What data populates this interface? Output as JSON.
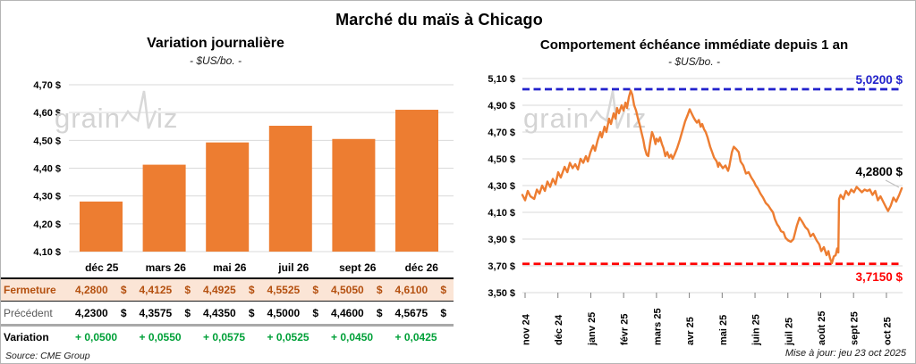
{
  "title": "Marché du maïs à Chicago",
  "source_note": "Source: CME Group",
  "update_note": "Mise à jour: jeu 23 oct 2025",
  "watermark": {
    "part1": "grain",
    "part2": "iz"
  },
  "colors": {
    "bar": "#ed7d31",
    "line": "#ed7d31",
    "gridline": "#d9d9d9",
    "resistance_blue": "#2222cc",
    "support_red": "#fe0000",
    "fermeture_text": "#b4500f",
    "fermeture_bg": "#fbe5d6",
    "variation_green": "#00a038",
    "watermark_gray": "#d4d4d4",
    "tick_gray": "#7f7f7f",
    "leader_gray": "#bfbfbf"
  },
  "chart_data": [
    {
      "type": "bar",
      "title": "Variation journalière",
      "subtitle": "- $US/bo. -",
      "categories": [
        "déc 25",
        "mars 26",
        "mai 26",
        "juil 26",
        "sept 26",
        "déc 26"
      ],
      "values": [
        4.28,
        4.4125,
        4.4925,
        4.5525,
        4.505,
        4.61
      ],
      "ylabel": "$US/bo.",
      "ylim": [
        4.1,
        4.7
      ],
      "ytick_labels": [
        "4,70 $",
        "4,60 $",
        "4,50 $",
        "4,40 $",
        "4,30 $",
        "4,20 $",
        "4,10 $"
      ],
      "grid": true,
      "legend": "none"
    },
    {
      "type": "line",
      "title": "Comportement échéance immédiate depuis 1 an",
      "subtitle": "- $US/bo. -",
      "ylabel": "$US/bo.",
      "ylim": [
        3.5,
        5.1
      ],
      "ytick_labels": [
        "5,10 $",
        "4,90 $",
        "4,70 $",
        "4,50 $",
        "4,30 $",
        "4,10 $",
        "3,90 $",
        "3,70 $",
        "3,50 $"
      ],
      "x_labels": [
        "nov 24",
        "déc 24",
        "janv 25",
        "févr 25",
        "mars 25",
        "avr 25",
        "mai 25",
        "juin 25",
        "juil 25",
        "août 25",
        "sept 25",
        "oct 25"
      ],
      "grid": true,
      "resistance": {
        "value": 5.02,
        "label": "5,0200 $"
      },
      "support": {
        "value": 3.715,
        "label": "3,7150 $"
      },
      "last_point": {
        "value": 4.28,
        "label": "4,2800 $"
      },
      "points": [
        [
          0.0,
          4.23
        ],
        [
          0.007,
          4.19
        ],
        [
          0.014,
          4.26
        ],
        [
          0.021,
          4.22
        ],
        [
          0.031,
          4.2
        ],
        [
          0.038,
          4.27
        ],
        [
          0.045,
          4.24
        ],
        [
          0.052,
          4.3
        ],
        [
          0.059,
          4.26
        ],
        [
          0.066,
          4.33
        ],
        [
          0.073,
          4.29
        ],
        [
          0.08,
          4.35
        ],
        [
          0.087,
          4.31
        ],
        [
          0.094,
          4.4
        ],
        [
          0.101,
          4.36
        ],
        [
          0.111,
          4.44
        ],
        [
          0.118,
          4.4
        ],
        [
          0.125,
          4.47
        ],
        [
          0.132,
          4.43
        ],
        [
          0.139,
          4.46
        ],
        [
          0.146,
          4.42
        ],
        [
          0.153,
          4.5
        ],
        [
          0.16,
          4.47
        ],
        [
          0.167,
          4.52
        ],
        [
          0.172,
          4.48
        ],
        [
          0.179,
          4.55
        ],
        [
          0.186,
          4.6
        ],
        [
          0.191,
          4.56
        ],
        [
          0.198,
          4.64
        ],
        [
          0.205,
          4.7
        ],
        [
          0.209,
          4.66
        ],
        [
          0.216,
          4.74
        ],
        [
          0.221,
          4.7
        ],
        [
          0.228,
          4.8
        ],
        [
          0.233,
          4.76
        ],
        [
          0.24,
          4.84
        ],
        [
          0.245,
          4.8
        ],
        [
          0.249,
          4.88
        ],
        [
          0.254,
          4.84
        ],
        [
          0.261,
          4.9
        ],
        [
          0.266,
          4.86
        ],
        [
          0.271,
          4.92
        ],
        [
          0.275,
          4.88
        ],
        [
          0.28,
          4.96
        ],
        [
          0.285,
          5.01
        ],
        [
          0.289,
          4.98
        ],
        [
          0.294,
          4.9
        ],
        [
          0.299,
          4.86
        ],
        [
          0.304,
          4.8
        ],
        [
          0.309,
          4.75
        ],
        [
          0.313,
          4.7
        ],
        [
          0.318,
          4.64
        ],
        [
          0.322,
          4.58
        ],
        [
          0.327,
          4.53
        ],
        [
          0.331,
          4.52
        ],
        [
          0.336,
          4.62
        ],
        [
          0.341,
          4.7
        ],
        [
          0.345,
          4.67
        ],
        [
          0.35,
          4.61
        ],
        [
          0.353,
          4.65
        ],
        [
          0.358,
          4.63
        ],
        [
          0.362,
          4.66
        ],
        [
          0.367,
          4.61
        ],
        [
          0.371,
          4.58
        ],
        [
          0.376,
          4.52
        ],
        [
          0.381,
          4.55
        ],
        [
          0.386,
          4.51
        ],
        [
          0.391,
          4.53
        ],
        [
          0.395,
          4.5
        ],
        [
          0.4,
          4.53
        ],
        [
          0.407,
          4.58
        ],
        [
          0.414,
          4.64
        ],
        [
          0.421,
          4.71
        ],
        [
          0.428,
          4.78
        ],
        [
          0.435,
          4.83
        ],
        [
          0.44,
          4.87
        ],
        [
          0.445,
          4.84
        ],
        [
          0.45,
          4.81
        ],
        [
          0.454,
          4.79
        ],
        [
          0.459,
          4.77
        ],
        [
          0.464,
          4.79
        ],
        [
          0.469,
          4.74
        ],
        [
          0.473,
          4.76
        ],
        [
          0.478,
          4.72
        ],
        [
          0.482,
          4.7
        ],
        [
          0.487,
          4.66
        ],
        [
          0.494,
          4.59
        ],
        [
          0.499,
          4.55
        ],
        [
          0.504,
          4.51
        ],
        [
          0.511,
          4.48
        ],
        [
          0.515,
          4.44
        ],
        [
          0.518,
          4.47
        ],
        [
          0.527,
          4.43
        ],
        [
          0.534,
          4.45
        ],
        [
          0.541,
          4.41
        ],
        [
          0.544,
          4.44
        ],
        [
          0.551,
          4.55
        ],
        [
          0.556,
          4.59
        ],
        [
          0.563,
          4.57
        ],
        [
          0.569,
          4.55
        ],
        [
          0.574,
          4.48
        ],
        [
          0.581,
          4.45
        ],
        [
          0.588,
          4.39
        ],
        [
          0.595,
          4.4
        ],
        [
          0.602,
          4.36
        ],
        [
          0.609,
          4.33
        ],
        [
          0.614,
          4.3
        ],
        [
          0.619,
          4.28
        ],
        [
          0.626,
          4.24
        ],
        [
          0.633,
          4.21
        ],
        [
          0.64,
          4.17
        ],
        [
          0.647,
          4.15
        ],
        [
          0.654,
          4.12
        ],
        [
          0.659,
          4.1
        ],
        [
          0.664,
          4.05
        ],
        [
          0.67,
          4.01
        ],
        [
          0.675,
          3.99
        ],
        [
          0.68,
          3.96
        ],
        [
          0.687,
          3.95
        ],
        [
          0.692,
          3.91
        ],
        [
          0.699,
          3.89
        ],
        [
          0.706,
          3.88
        ],
        [
          0.713,
          3.9
        ],
        [
          0.722,
          4.0
        ],
        [
          0.729,
          4.06
        ],
        [
          0.736,
          4.03
        ],
        [
          0.744,
          3.99
        ],
        [
          0.751,
          3.97
        ],
        [
          0.758,
          3.92
        ],
        [
          0.765,
          3.94
        ],
        [
          0.774,
          3.89
        ],
        [
          0.781,
          3.86
        ],
        [
          0.786,
          3.81
        ],
        [
          0.793,
          3.84
        ],
        [
          0.8,
          3.78
        ],
        [
          0.805,
          3.81
        ],
        [
          0.809,
          3.76
        ],
        [
          0.814,
          3.72
        ],
        [
          0.819,
          3.77
        ],
        [
          0.824,
          3.78
        ],
        [
          0.828,
          3.83
        ],
        [
          0.831,
          3.8
        ],
        [
          0.833,
          4.2
        ],
        [
          0.837,
          4.23
        ],
        [
          0.844,
          4.2
        ],
        [
          0.851,
          4.26
        ],
        [
          0.858,
          4.23
        ],
        [
          0.865,
          4.27
        ],
        [
          0.872,
          4.25
        ],
        [
          0.879,
          4.29
        ],
        [
          0.886,
          4.27
        ],
        [
          0.893,
          4.25
        ],
        [
          0.9,
          4.27
        ],
        [
          0.907,
          4.26
        ],
        [
          0.914,
          4.27
        ],
        [
          0.921,
          4.23
        ],
        [
          0.928,
          4.26
        ],
        [
          0.935,
          4.19
        ],
        [
          0.942,
          4.22
        ],
        [
          0.949,
          4.18
        ],
        [
          0.956,
          4.14
        ],
        [
          0.962,
          4.11
        ],
        [
          0.969,
          4.15
        ],
        [
          0.976,
          4.21
        ],
        [
          0.983,
          4.18
        ],
        [
          0.991,
          4.23
        ],
        [
          0.998,
          4.28
        ]
      ]
    }
  ],
  "table": {
    "col_headers": [
      "déc 25",
      "mars 26",
      "mai 26",
      "juil 26",
      "sept 26",
      "déc 26"
    ],
    "currency": "$",
    "rows": [
      {
        "label": "Fermeture",
        "values": [
          "4,2800",
          "4,4125",
          "4,4925",
          "4,5525",
          "4,5050",
          "4,6100"
        ],
        "currency": true
      },
      {
        "label": "Précédent",
        "values": [
          "4,2300",
          "4,3575",
          "4,4350",
          "4,5000",
          "4,4600",
          "4,5675"
        ],
        "currency": true
      },
      {
        "label": "Variation",
        "values": [
          "+ 0,0500",
          "+ 0,0550",
          "+ 0,0575",
          "+ 0,0525",
          "+ 0,0450",
          "+ 0,0425"
        ],
        "currency": false
      }
    ]
  }
}
